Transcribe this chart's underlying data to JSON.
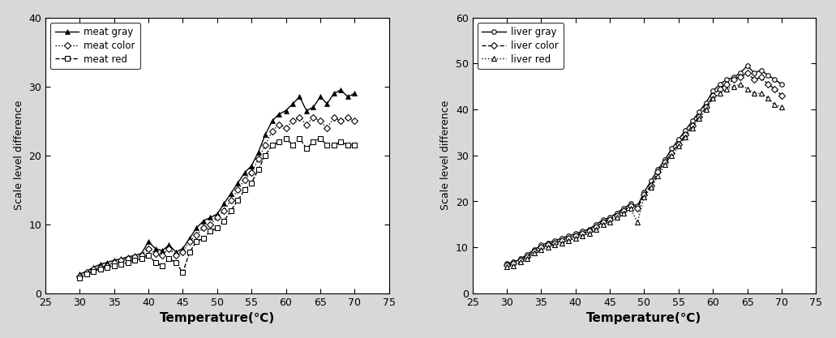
{
  "meat_gray_x": [
    30,
    31,
    32,
    33,
    34,
    35,
    36,
    37,
    38,
    39,
    40,
    41,
    42,
    43,
    44,
    45,
    46,
    47,
    48,
    49,
    50,
    51,
    52,
    53,
    54,
    55,
    56,
    57,
    58,
    59,
    60,
    61,
    62,
    63,
    64,
    65,
    66,
    67,
    68,
    69,
    70
  ],
  "meat_gray_y": [
    2.8,
    3.2,
    3.8,
    4.2,
    4.5,
    4.8,
    5.0,
    5.3,
    5.5,
    5.8,
    7.5,
    6.5,
    6.2,
    7.0,
    6.0,
    6.5,
    8.0,
    9.5,
    10.5,
    11.0,
    11.5,
    13.0,
    14.5,
    16.0,
    17.5,
    18.5,
    20.5,
    23.0,
    25.0,
    26.0,
    26.5,
    27.5,
    28.5,
    26.5,
    27.0,
    28.5,
    27.5,
    29.0,
    29.5,
    28.5,
    29.0
  ],
  "meat_color_x": [
    30,
    31,
    32,
    33,
    34,
    35,
    36,
    37,
    38,
    39,
    40,
    41,
    42,
    43,
    44,
    45,
    46,
    47,
    48,
    49,
    50,
    51,
    52,
    53,
    54,
    55,
    56,
    57,
    58,
    59,
    60,
    61,
    62,
    63,
    64,
    65,
    66,
    67,
    68,
    69,
    70
  ],
  "meat_color_y": [
    2.5,
    3.0,
    3.5,
    3.8,
    4.0,
    4.5,
    4.8,
    5.0,
    5.3,
    5.5,
    6.5,
    5.8,
    5.5,
    6.5,
    5.5,
    6.0,
    7.5,
    8.5,
    9.5,
    10.0,
    11.0,
    12.0,
    13.5,
    15.0,
    16.5,
    17.5,
    19.5,
    21.5,
    23.5,
    24.5,
    24.0,
    25.0,
    25.5,
    24.5,
    25.5,
    25.0,
    24.0,
    25.5,
    25.0,
    25.5,
    25.0
  ],
  "meat_red_x": [
    30,
    31,
    32,
    33,
    34,
    35,
    36,
    37,
    38,
    39,
    40,
    41,
    42,
    43,
    44,
    45,
    46,
    47,
    48,
    49,
    50,
    51,
    52,
    53,
    54,
    55,
    56,
    57,
    58,
    59,
    60,
    61,
    62,
    63,
    64,
    65,
    66,
    67,
    68,
    69,
    70
  ],
  "meat_red_y": [
    2.2,
    2.8,
    3.2,
    3.5,
    3.8,
    4.0,
    4.2,
    4.5,
    4.8,
    5.0,
    5.5,
    4.5,
    4.0,
    5.0,
    4.5,
    3.0,
    6.0,
    7.5,
    8.0,
    9.0,
    9.5,
    10.5,
    12.0,
    13.5,
    15.0,
    16.0,
    18.0,
    20.0,
    21.5,
    22.0,
    22.5,
    21.5,
    22.5,
    21.0,
    22.0,
    22.5,
    21.5,
    21.5,
    22.0,
    21.5,
    21.5
  ],
  "liver_gray_x": [
    30,
    31,
    32,
    33,
    34,
    35,
    36,
    37,
    38,
    39,
    40,
    41,
    42,
    43,
    44,
    45,
    46,
    47,
    48,
    49,
    50,
    51,
    52,
    53,
    54,
    55,
    56,
    57,
    58,
    59,
    60,
    61,
    62,
    63,
    64,
    65,
    66,
    67,
    68,
    69,
    70
  ],
  "liver_gray_y": [
    6.5,
    6.8,
    7.5,
    8.5,
    9.5,
    10.5,
    11.0,
    11.5,
    12.0,
    12.5,
    13.0,
    13.5,
    14.0,
    15.0,
    16.0,
    16.5,
    17.5,
    18.5,
    19.5,
    19.0,
    22.0,
    24.5,
    27.0,
    29.0,
    31.5,
    33.5,
    35.5,
    37.5,
    39.5,
    41.5,
    44.0,
    45.5,
    46.5,
    47.0,
    48.0,
    49.5,
    48.0,
    48.5,
    47.5,
    46.5,
    45.5
  ],
  "liver_color_x": [
    30,
    31,
    32,
    33,
    34,
    35,
    36,
    37,
    38,
    39,
    40,
    41,
    42,
    43,
    44,
    45,
    46,
    47,
    48,
    49,
    50,
    51,
    52,
    53,
    54,
    55,
    56,
    57,
    58,
    59,
    60,
    61,
    62,
    63,
    64,
    65,
    66,
    67,
    68,
    69,
    70
  ],
  "liver_color_y": [
    6.2,
    6.5,
    7.2,
    8.0,
    9.2,
    10.0,
    10.5,
    11.0,
    11.5,
    12.0,
    12.5,
    13.0,
    13.5,
    14.5,
    15.5,
    16.0,
    17.0,
    18.0,
    19.0,
    18.5,
    21.5,
    23.5,
    26.5,
    28.5,
    30.5,
    32.5,
    34.5,
    36.5,
    38.5,
    40.5,
    43.0,
    44.5,
    45.5,
    46.5,
    47.0,
    48.0,
    46.5,
    47.0,
    45.5,
    44.5,
    43.0
  ],
  "liver_red_x": [
    30,
    31,
    32,
    33,
    34,
    35,
    36,
    37,
    38,
    39,
    40,
    41,
    42,
    43,
    44,
    45,
    46,
    47,
    48,
    49,
    50,
    51,
    52,
    53,
    54,
    55,
    56,
    57,
    58,
    59,
    60,
    61,
    62,
    63,
    64,
    65,
    66,
    67,
    68,
    69,
    70
  ],
  "liver_red_y": [
    5.8,
    6.0,
    6.8,
    7.5,
    8.8,
    9.5,
    10.0,
    10.5,
    11.0,
    11.5,
    12.0,
    12.5,
    13.0,
    14.0,
    15.0,
    15.5,
    16.5,
    17.5,
    18.5,
    15.5,
    21.0,
    23.0,
    25.5,
    28.0,
    30.0,
    32.0,
    34.0,
    36.0,
    38.0,
    40.0,
    42.5,
    43.5,
    44.5,
    45.0,
    45.5,
    44.5,
    43.5,
    43.5,
    42.5,
    41.0,
    40.5
  ],
  "xlabel": "Temperature(℃)",
  "ylabel": "Scale level difference",
  "meat_legend": [
    "meat gray",
    "meat color",
    "meat red"
  ],
  "liver_legend": [
    "liver gray",
    "liver color",
    "liver red"
  ],
  "xlim": [
    25,
    75
  ],
  "meat_ylim": [
    0,
    40
  ],
  "liver_ylim": [
    0,
    60
  ],
  "xticks": [
    25,
    30,
    35,
    40,
    45,
    50,
    55,
    60,
    65,
    70,
    75
  ],
  "meat_yticks": [
    0,
    10,
    20,
    30,
    40
  ],
  "liver_yticks": [
    0,
    10,
    20,
    30,
    40,
    50,
    60
  ],
  "line_color": "#000000",
  "fig_bg_color": "#d8d8d8",
  "panel_bg_color": "#ffffff"
}
